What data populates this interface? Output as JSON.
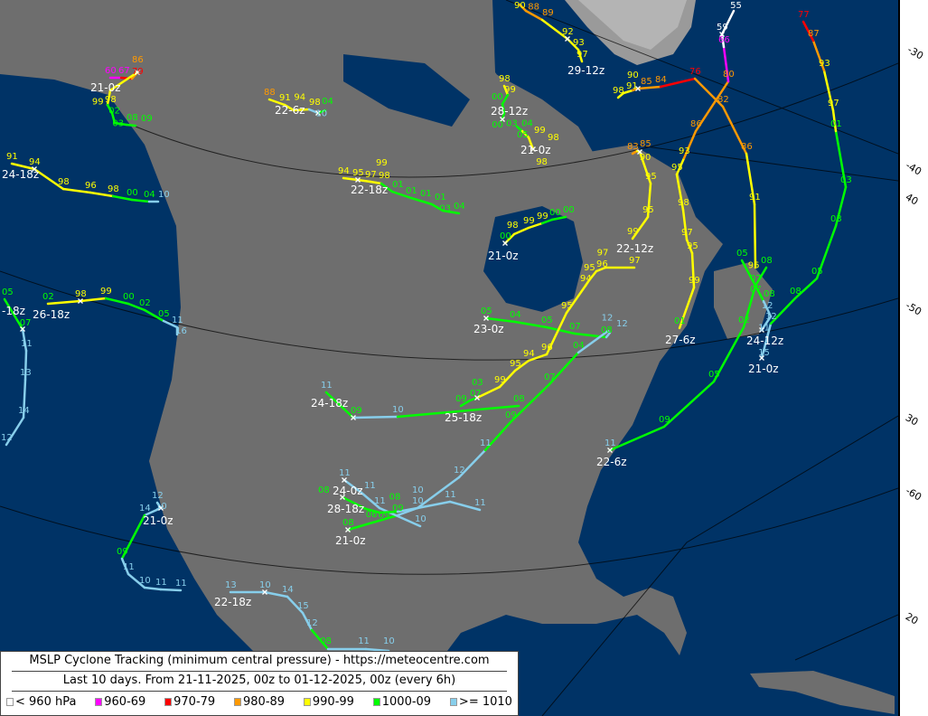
{
  "legend": {
    "title": "MSLP Cyclone Tracking (minimum central pressure) - https://meteocentre.com",
    "subtitle": "Last 10 days. From 21-11-2025, 00z to 01-12-2025, 00z (every 6h)",
    "classes": [
      {
        "label": "< 960 hPa",
        "color": "#ffffff"
      },
      {
        "label": "960-69",
        "color": "#ff00ff"
      },
      {
        "label": "970-79",
        "color": "#ff0000"
      },
      {
        "label": "980-89",
        "color": "#ff9900"
      },
      {
        "label": "990-99",
        "color": "#ffff00"
      },
      {
        "label": "1000-09",
        "color": "#00ff00"
      },
      {
        "label": ">= 1010",
        "color": "#87ceeb"
      }
    ]
  },
  "colors": {
    "ocean": "#003366",
    "land": "#6e6e6e",
    "ice": "#b4b4b4",
    "time_label": "#ffffff",
    "marker": "#ffffff"
  },
  "margin_labels": [
    "-30",
    "-40",
    "40",
    "-50",
    "30",
    "-60",
    "20"
  ],
  "tracks": [
    {
      "time_label": "21-0z",
      "pressures": [
        "60",
        "67",
        "79",
        "86",
        "98",
        "99",
        "02",
        "03",
        "08",
        "09"
      ]
    },
    {
      "time_label": "24-18z",
      "pressures": [
        "91",
        "94",
        "98",
        "96",
        "98",
        "00",
        "04",
        "10"
      ]
    },
    {
      "time_label": "22-6z",
      "pressures": [
        "88",
        "91",
        "94",
        "98",
        "10",
        "04"
      ]
    },
    {
      "time_label": "22-18z",
      "pressures": [
        "94",
        "95",
        "97",
        "98",
        "99",
        "01",
        "01",
        "01",
        "01",
        "03",
        "04"
      ]
    },
    {
      "time_label": "21-0z",
      "pressures": [
        "00",
        "98",
        "99",
        "99",
        "00",
        "00"
      ]
    },
    {
      "time_label": "23-0z",
      "pressures": [
        "05",
        "04",
        "05",
        "07",
        "08",
        "12"
      ]
    },
    {
      "time_label": "25-18z",
      "pressures": [
        "09",
        "07",
        "03",
        "99",
        "95",
        "94",
        "96",
        "95",
        "94",
        "95",
        "96",
        "97",
        "97"
      ]
    },
    {
      "time_label": "24-18z",
      "pressures": [
        "11",
        "09",
        "10",
        "08"
      ]
    },
    {
      "time_label": "21-0z",
      "pressures": [
        "08",
        "09",
        "10",
        "12",
        "11",
        "09",
        "07",
        "04",
        "12"
      ]
    },
    {
      "time_label": "24-0z",
      "pressures": [
        "11",
        "11",
        "11",
        "10"
      ]
    },
    {
      "time_label": "28-18z",
      "pressures": [
        "08",
        "06",
        "09",
        "08",
        "10",
        "11",
        "11"
      ]
    },
    {
      "time_label": "22-6z",
      "pressures": [
        "11",
        "09",
        "05",
        "02",
        "07",
        "08"
      ]
    },
    {
      "time_label": "21-0z",
      "pressures": [
        "15",
        "12",
        "08",
        "05",
        "03",
        "03",
        "01",
        "97",
        "93",
        "87",
        "77"
      ]
    },
    {
      "time_label": "24-12z",
      "pressures": [
        "05",
        "07",
        "08",
        "12",
        "11"
      ]
    },
    {
      "time_label": "27-6z",
      "pressures": [
        "01",
        "99",
        "95",
        "97",
        "98",
        "95",
        "93",
        "86",
        "80",
        "66",
        "59",
        "55"
      ]
    },
    {
      "pressures": [
        "98",
        "91",
        "90",
        "85",
        "84",
        "76",
        "82",
        "86",
        "91",
        "96"
      ]
    },
    {
      "time_label": "29-12z",
      "pressures": [
        "90",
        "88",
        "89",
        "92",
        "93",
        "97"
      ]
    },
    {
      "time_label": "22-12z",
      "pressures": [
        "83",
        "85",
        "90",
        "95",
        "95",
        "99"
      ]
    },
    {
      "time_label": "28-12z",
      "pressures": [
        "98",
        "99",
        "00",
        "03",
        "00"
      ]
    },
    {
      "time_label": "21-0z",
      "pressures": [
        "04",
        "05",
        "99",
        "98",
        "98"
      ]
    },
    {
      "time_label": "26-18z",
      "pressures": [
        "02",
        "98",
        "99",
        "00",
        "02",
        "05",
        "11",
        "16"
      ]
    },
    {
      "time_label": "-18z",
      "pressures": [
        "05",
        "07",
        "11",
        "13",
        "14",
        "12"
      ]
    },
    {
      "time_label": "21-0z",
      "pressures": [
        "12",
        "10",
        "14",
        "09",
        "11",
        "10",
        "11",
        "11"
      ]
    },
    {
      "time_label": "22-18z",
      "pressures": [
        "13",
        "10",
        "14",
        "15",
        "12",
        "08",
        "11",
        "10"
      ]
    }
  ]
}
